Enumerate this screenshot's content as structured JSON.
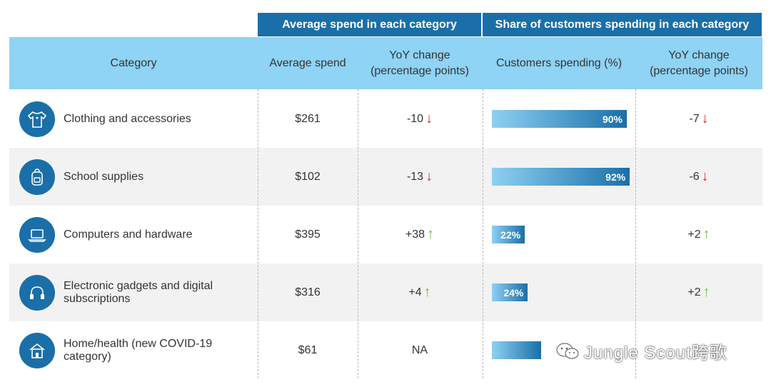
{
  "group_headers": {
    "avg_spend": "Average spend in each category",
    "share": "Share of customers spending in each category"
  },
  "columns": {
    "category": "Category",
    "avg_spend": "Average spend",
    "yoy_spend_line1": "YoY change",
    "yoy_spend_line2": "(percentage points)",
    "customers": "Customers spending (%)",
    "yoy_share_line1": "YoY change",
    "yoy_share_line2": "(percentage points)"
  },
  "rows": [
    {
      "category": "Clothing and accessories",
      "icon": "tshirt-icon",
      "avg_spend": "$261",
      "yoy_spend": "-10",
      "yoy_spend_dir": "down",
      "share_label": "90%",
      "yoy_share": "-7",
      "yoy_share_dir": "down"
    },
    {
      "category": "School supplies",
      "icon": "backpack-icon",
      "avg_spend": "$102",
      "yoy_spend": "-13",
      "yoy_spend_dir": "down",
      "share_label": "92%",
      "yoy_share": "-6",
      "yoy_share_dir": "down"
    },
    {
      "category": "Computers and hardware",
      "icon": "laptop-icon",
      "avg_spend": "$395",
      "yoy_spend": "+38",
      "yoy_spend_dir": "up",
      "share_label": "22%",
      "yoy_share": "+2",
      "yoy_share_dir": "up"
    },
    {
      "category": "Electronic gadgets and digital subscriptions",
      "icon": "headphones-icon",
      "avg_spend": "$316",
      "yoy_spend": "+4",
      "yoy_spend_dir": "up",
      "share_label": "24%",
      "yoy_share": "+2",
      "yoy_share_dir": "up"
    },
    {
      "category": "Home/health (new COVID-19 category)",
      "icon": "house-icon",
      "avg_spend": "$61",
      "yoy_spend": "NA",
      "yoy_spend_dir": "",
      "share_label": "",
      "yoy_share": "",
      "yoy_share_dir": ""
    }
  ],
  "chart_data": {
    "type": "table",
    "title": "Share of customers spending in each category",
    "categories": [
      "Clothing and accessories",
      "School supplies",
      "Computers and hardware",
      "Electronic gadgets and digital subscriptions",
      "Home/health (new COVID-19 category)"
    ],
    "series": [
      {
        "name": "Average spend ($)",
        "values": [
          261,
          102,
          395,
          316,
          61
        ]
      },
      {
        "name": "Average spend YoY change (percentage points)",
        "values": [
          -10,
          -13,
          38,
          4,
          null
        ]
      },
      {
        "name": "Customers spending (%)",
        "values": [
          90,
          92,
          22,
          24,
          33
        ]
      },
      {
        "name": "Customers spending YoY change (percentage points)",
        "values": [
          -7,
          -6,
          2,
          2,
          null
        ]
      }
    ],
    "xlabel": "",
    "ylabel": "Customers spending (%)",
    "ylim": [
      0,
      100
    ]
  },
  "watermark": "Jungle Scout跨歌",
  "colors": {
    "header_dark": "#1a6fa8",
    "header_light": "#8fd3f5",
    "down": "#d9342b",
    "up": "#6cbf3c",
    "row_alt": "#f2f2f2"
  }
}
